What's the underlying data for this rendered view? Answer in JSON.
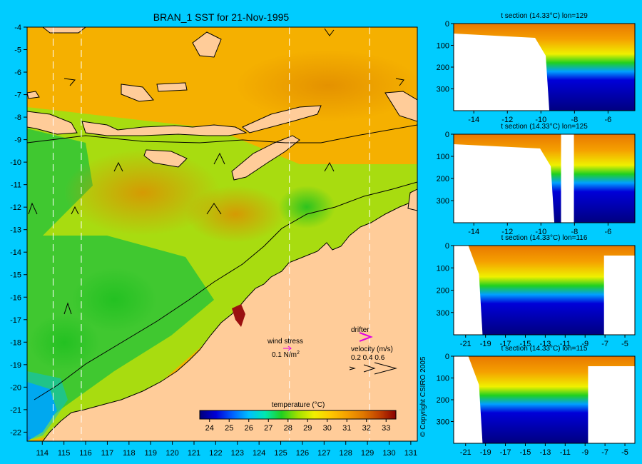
{
  "chart_data": [
    {
      "type": "heatmap",
      "title": "BRAN_1 SST for 21-Nov-1995",
      "x_ticks": [
        114,
        115,
        116,
        117,
        118,
        119,
        120,
        121,
        122,
        123,
        124,
        125,
        126,
        127,
        128,
        129,
        130,
        131
      ],
      "y_ticks": [
        -4,
        -5,
        -6,
        -7,
        -8,
        -9,
        -10,
        -11,
        -12,
        -13,
        -14,
        -15,
        -16,
        -17,
        -18,
        -19,
        -20,
        -21,
        -22
      ],
      "xlim": [
        113.3,
        131.3
      ],
      "ylim": [
        -22.4,
        -4
      ],
      "section_lines_lon": [
        114.5,
        115.8,
        125.4,
        129.1
      ],
      "colorbar": {
        "label": "temperature (°C)",
        "ticks": [
          24,
          25,
          26,
          27,
          28,
          29,
          30,
          31,
          32,
          33
        ],
        "range": [
          23.5,
          33.5
        ],
        "colors": [
          "#00007a",
          "#0000d8",
          "#0060ff",
          "#00c0ff",
          "#00e8b0",
          "#20d020",
          "#a0e000",
          "#f0f000",
          "#ffc800",
          "#f5a000",
          "#e07800",
          "#c04000",
          "#8a0000"
        ]
      },
      "legend": {
        "wind_stress": "wind stress",
        "wind_scale": "0.1 N/m",
        "wind_scale_sup": "2",
        "drifter": "drifter",
        "velocity": "velocity (m/s)",
        "velocity_scale": "0.2 0.4 0.6"
      }
    },
    {
      "type": "heatmap",
      "title": "t section (14.33°C) lon=129",
      "x_ticks": [
        -14,
        -12,
        -10,
        -8,
        -6
      ],
      "xlim": [
        -15.2,
        -4.4
      ],
      "y_ticks": [
        0,
        100,
        200,
        300
      ],
      "ylim": [
        400,
        0
      ],
      "land_edge_lat": -9.5
    },
    {
      "type": "heatmap",
      "title": "t section (14.33°C) lon=125",
      "x_ticks": [
        -14,
        -12,
        -10,
        -8,
        -6
      ],
      "xlim": [
        -15.2,
        -4.4
      ],
      "y_ticks": [
        0,
        100,
        200,
        300
      ],
      "ylim": [
        400,
        0
      ],
      "land_edge_lat": -9.2
    },
    {
      "type": "heatmap",
      "title": "t section (14.33°C) lon=116",
      "x_ticks": [
        -21,
        -19,
        -17,
        -15,
        -13,
        -11,
        -9,
        -7,
        -5
      ],
      "xlim": [
        -22.2,
        -4
      ],
      "y_ticks": [
        0,
        100,
        200,
        300
      ],
      "ylim": [
        400,
        0
      ],
      "land_edge_lat": -7.1
    },
    {
      "type": "heatmap",
      "title": "t section (14.33°C) lon=115",
      "x_ticks": [
        -21,
        -19,
        -17,
        -15,
        -13,
        -11,
        -9,
        -7,
        -5
      ],
      "xlim": [
        -22.2,
        -4
      ],
      "y_ticks": [
        0,
        100,
        200,
        300
      ],
      "ylim": [
        400,
        0
      ],
      "land_edge_lat": -8.7
    }
  ],
  "copyright": "© Copyright CSIRO 2005",
  "colors": {
    "background": "#00ccff",
    "land": "#ffcc99",
    "deep_water": "#000080"
  }
}
